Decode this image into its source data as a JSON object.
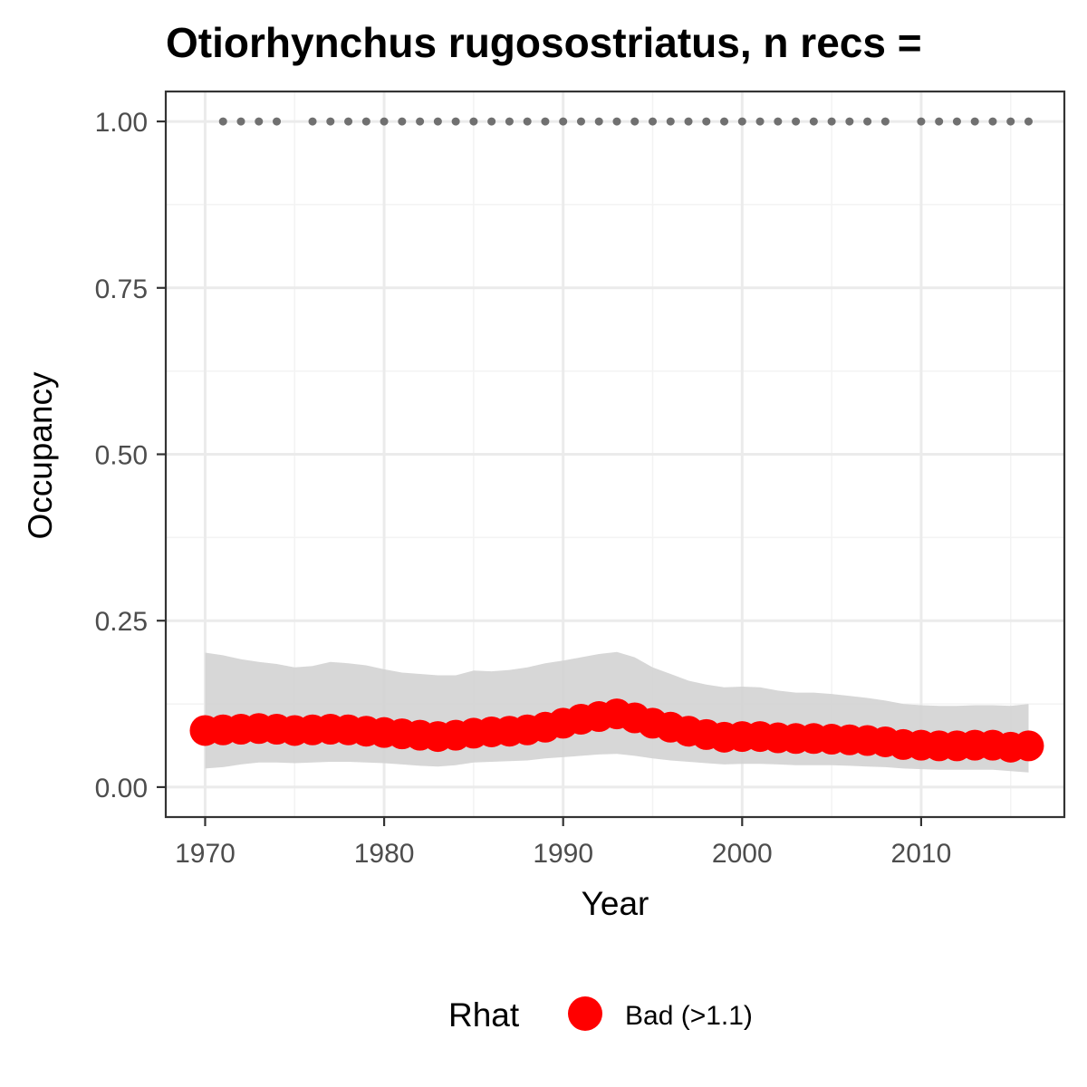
{
  "chart_data": {
    "type": "line",
    "title": "Otiorhynchus rugosostriatus, n recs = ",
    "xlabel": "Year",
    "ylabel": "Occupancy",
    "xlim": [
      1967.8,
      2018
    ],
    "ylim": [
      -0.045,
      1.045
    ],
    "x_ticks": [
      1970,
      1980,
      1990,
      2000,
      2010
    ],
    "y_ticks": [
      0.0,
      0.25,
      0.5,
      0.75,
      1.0
    ],
    "x_tick_labels": [
      "1970",
      "1980",
      "1990",
      "2000",
      "2010"
    ],
    "y_tick_labels": [
      "0.00",
      "0.25",
      "0.50",
      "0.75",
      "1.00"
    ],
    "grid": true,
    "legend": {
      "title": "Rhat",
      "position": "bottom",
      "entries": [
        {
          "label": "Bad (>1.1)",
          "color": "#ff0000"
        }
      ]
    },
    "colors": {
      "point": "#ff0000",
      "ribbon": "#d3d3d3",
      "record_marks": "#707070",
      "panel_border": "#333333",
      "grid_major": "#ebebeb",
      "grid_minor": "#f3f3f3"
    },
    "series": [
      {
        "x": [
          1970,
          1971,
          1972,
          1973,
          1974,
          1975,
          1976,
          1977,
          1978,
          1979,
          1980,
          1981,
          1982,
          1983,
          1984,
          1985,
          1986,
          1987,
          1988,
          1989,
          1990,
          1991,
          1992,
          1993,
          1994,
          1995,
          1996,
          1997,
          1998,
          1999,
          2000,
          2001,
          2002,
          2003,
          2004,
          2005,
          2006,
          2007,
          2008,
          2009,
          2010,
          2011,
          2012,
          2013,
          2014,
          2015,
          2016
        ],
        "y": [
          0.085,
          0.086,
          0.087,
          0.088,
          0.087,
          0.085,
          0.086,
          0.087,
          0.086,
          0.084,
          0.082,
          0.08,
          0.078,
          0.076,
          0.078,
          0.081,
          0.083,
          0.084,
          0.086,
          0.09,
          0.096,
          0.102,
          0.106,
          0.11,
          0.104,
          0.096,
          0.09,
          0.084,
          0.079,
          0.075,
          0.076,
          0.076,
          0.074,
          0.073,
          0.073,
          0.072,
          0.071,
          0.07,
          0.068,
          0.064,
          0.063,
          0.062,
          0.062,
          0.063,
          0.063,
          0.06,
          0.062
        ],
        "lower": [
          0.028,
          0.03,
          0.034,
          0.037,
          0.037,
          0.036,
          0.037,
          0.038,
          0.038,
          0.037,
          0.036,
          0.034,
          0.032,
          0.031,
          0.033,
          0.037,
          0.038,
          0.039,
          0.04,
          0.043,
          0.045,
          0.047,
          0.049,
          0.05,
          0.047,
          0.043,
          0.04,
          0.038,
          0.036,
          0.034,
          0.035,
          0.035,
          0.034,
          0.033,
          0.033,
          0.033,
          0.032,
          0.031,
          0.03,
          0.028,
          0.027,
          0.026,
          0.026,
          0.026,
          0.026,
          0.024,
          0.022
        ],
        "upper": [
          0.202,
          0.198,
          0.192,
          0.188,
          0.185,
          0.18,
          0.182,
          0.188,
          0.186,
          0.183,
          0.177,
          0.172,
          0.17,
          0.168,
          0.168,
          0.175,
          0.174,
          0.176,
          0.18,
          0.186,
          0.19,
          0.195,
          0.2,
          0.203,
          0.195,
          0.18,
          0.17,
          0.16,
          0.154,
          0.15,
          0.151,
          0.15,
          0.145,
          0.142,
          0.142,
          0.14,
          0.137,
          0.134,
          0.13,
          0.125,
          0.123,
          0.122,
          0.122,
          0.123,
          0.123,
          0.122,
          0.125
        ]
      }
    ],
    "record_years": [
      1971,
      1972,
      1973,
      1974,
      1976,
      1977,
      1978,
      1979,
      1980,
      1981,
      1982,
      1983,
      1984,
      1985,
      1986,
      1987,
      1988,
      1989,
      1990,
      1991,
      1992,
      1993,
      1994,
      1995,
      1996,
      1997,
      1998,
      1999,
      2000,
      2001,
      2002,
      2003,
      2004,
      2005,
      2006,
      2007,
      2008,
      2010,
      2011,
      2012,
      2013,
      2014,
      2015,
      2016
    ],
    "record_value": 1.0
  }
}
